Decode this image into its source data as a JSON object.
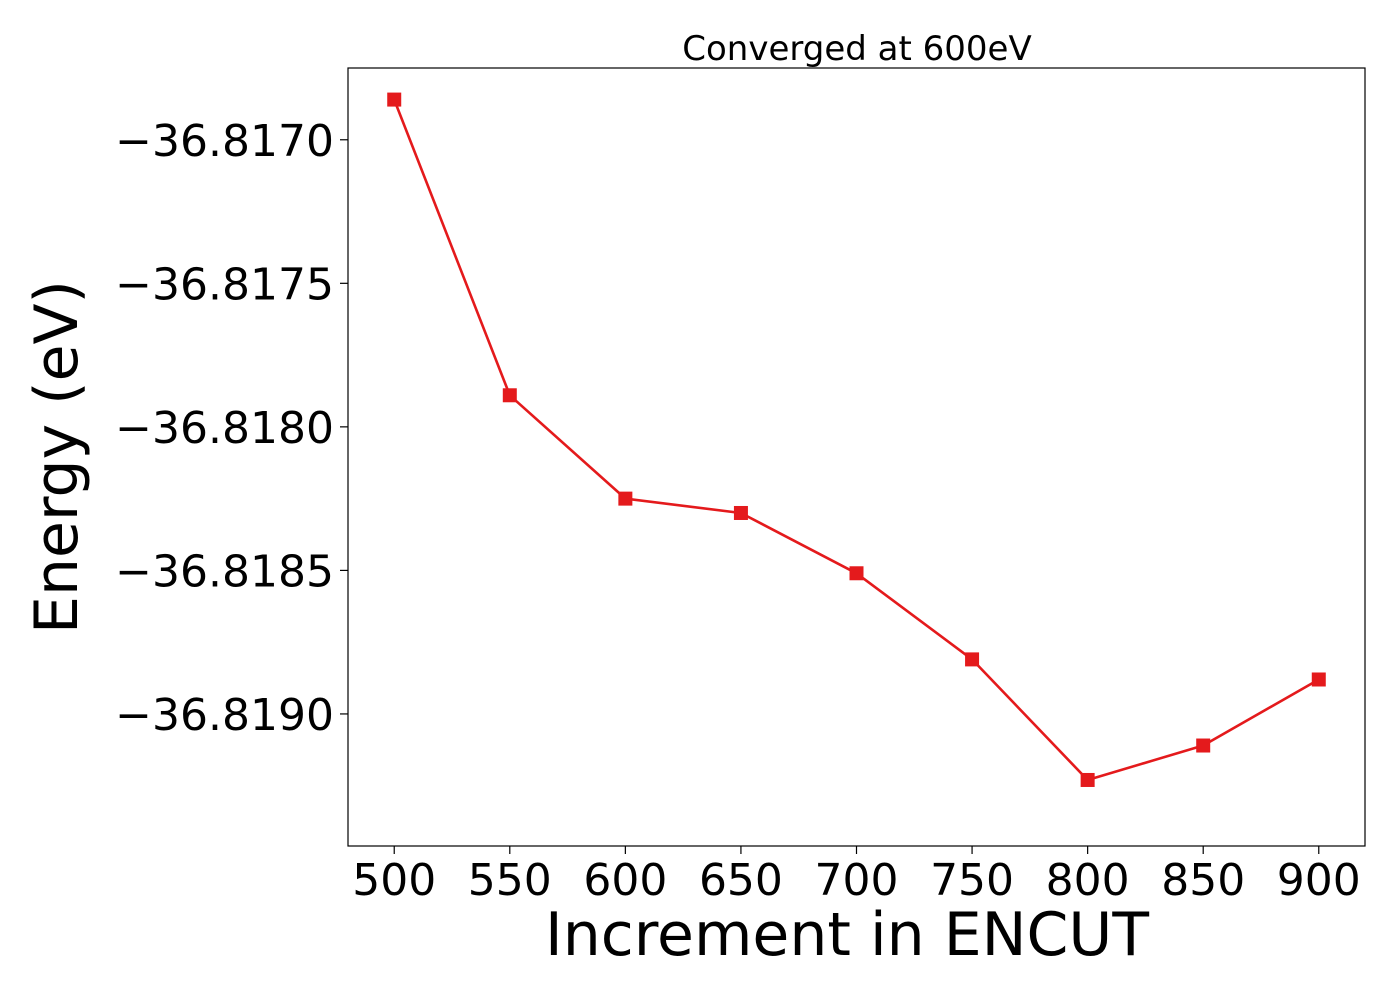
{
  "chart_data": {
    "type": "line",
    "title": "Converged at 600eV",
    "xlabel": "Increment in ENCUT",
    "ylabel": "Energy (eV)",
    "x": [
      500,
      550,
      600,
      650,
      700,
      750,
      800,
      850,
      900
    ],
    "series": [
      {
        "values": [
          -36.81686,
          -36.81789,
          -36.81825,
          -36.8183,
          -36.81851,
          -36.81881,
          -36.81923,
          -36.81911,
          -36.81888
        ],
        "color": "#e41a1c",
        "marker": "square"
      }
    ],
    "xticks": [
      500,
      550,
      600,
      650,
      700,
      750,
      800,
      850,
      900
    ],
    "xtick_labels": [
      "500",
      "550",
      "600",
      "650",
      "700",
      "750",
      "800",
      "850",
      "900"
    ],
    "yticks": [
      -36.817,
      -36.8175,
      -36.818,
      -36.8185,
      -36.819
    ],
    "ytick_labels": [
      "−36.8170",
      "−36.8175",
      "−36.8180",
      "−36.8185",
      "−36.8190"
    ],
    "xlim": [
      480,
      920
    ],
    "ylim": [
      -36.81946,
      -36.81675
    ],
    "grid": false,
    "legend": "none"
  }
}
